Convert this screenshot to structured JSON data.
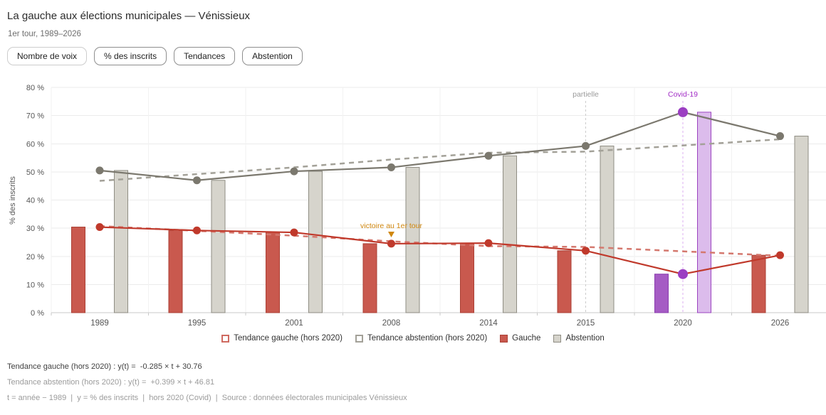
{
  "header": {
    "title": "La gauche aux élections municipales — Vénissieux",
    "subtitle": "1er tour, 1989–2026"
  },
  "toolbar": {
    "buttons": [
      {
        "label": "Nombre de voix",
        "active": false
      },
      {
        "label": "% des inscrits",
        "active": true
      },
      {
        "label": "Tendances",
        "active": true
      },
      {
        "label": "Abstention",
        "active": true
      }
    ]
  },
  "chart_data": {
    "type": "bar",
    "categories": [
      "1989",
      "1995",
      "2001",
      "2008",
      "2014",
      "2015",
      "2020",
      "2026"
    ],
    "ylabel": "% des inscrits",
    "ylim": [
      0,
      80
    ],
    "grid": true,
    "y_ticks": [
      {
        "v": 0,
        "label": "0 %"
      },
      {
        "v": 10,
        "label": "10 %"
      },
      {
        "v": 20,
        "label": "20 %"
      },
      {
        "v": 30,
        "label": "30 %"
      },
      {
        "v": 40,
        "label": "40 %"
      },
      {
        "v": 50,
        "label": "50 %"
      },
      {
        "v": 60,
        "label": "60 %"
      },
      {
        "v": 70,
        "label": "70 %"
      },
      {
        "v": 80,
        "label": "80 %"
      }
    ],
    "series": [
      {
        "name": "Gauche",
        "values": [
          30.4,
          29.2,
          28.5,
          24.5,
          24.7,
          22.0,
          13.7,
          20.4
        ]
      },
      {
        "name": "Abstention",
        "values": [
          50.5,
          47.0,
          50.2,
          51.6,
          55.7,
          59.2,
          71.2,
          62.7
        ]
      }
    ],
    "covid_year": "2020",
    "trends": [
      {
        "name": "Tendance gauche (hors 2020)",
        "slope": -0.285,
        "intercept": 30.76,
        "excludes": "2020",
        "base_year": 1989
      },
      {
        "name": "Tendance abstention (hors 2020)",
        "slope": 0.399,
        "intercept": 46.81,
        "excludes": "2020",
        "base_year": 1989
      }
    ],
    "annotations": [
      {
        "type": "vline",
        "year": "2015",
        "label": "partielle"
      },
      {
        "type": "vline",
        "year": "2020",
        "label": "Covid-19"
      },
      {
        "type": "marker",
        "year": "2008",
        "label": "victoire au 1er tour"
      }
    ],
    "legend_position": "bottom"
  },
  "legend": {
    "items": [
      {
        "label": "Tendance gauche (hors 2020)",
        "style": "dashed",
        "color": "#cf6a60"
      },
      {
        "label": "Tendance abstention (hors 2020)",
        "style": "dashed",
        "color": "#a3a198"
      },
      {
        "label": "Gauche",
        "style": "solid",
        "fill": "#c9594e",
        "stroke": "#ab4035"
      },
      {
        "label": "Abstention",
        "style": "solid",
        "fill": "#d6d4cc",
        "stroke": "#8f8d83"
      }
    ]
  },
  "footer": {
    "line1": "Tendance gauche (hors 2020) : y(t) =  -0.285 × t + 30.76",
    "line2": "Tendance abstention (hors 2020) : y(t) =  +0.399 × t + 46.81",
    "line3": "t = année − 1989  |  y = % des inscrits  |  hors 2020 (Covid)  |  Source : données électorales municipales Vénissieux"
  },
  "colors": {
    "barGauche": "#c9594e",
    "barGaucheStroke": "#ab4035",
    "barAbst": "#d6d4cc",
    "barAbstStroke": "#8f8d83",
    "lineGauche": "#c0392b",
    "lineAbst": "#7b786e",
    "trendGauche": "#d4786e",
    "trendAbst": "#a3a198",
    "covidBarGauche": "#a55bc4",
    "covidBarGaucheStroke": "#8a3cae",
    "covidBarAbst": "#dcbcec",
    "covidBarAbstStroke": "#9b44c0",
    "covidDot": "#9b3ec2",
    "annotationPartielle": "#9a9a9a",
    "vlinePartielle": "#cccccc",
    "annotationCovid": "#a22ec6",
    "vlineCovid": "#ddaff0",
    "annotationVictoire": "#d0870e",
    "axisText": "#555555",
    "gridH": "#ebebeb",
    "gridV": "#f2f2f2",
    "axisLine": "#c9c9c9"
  }
}
